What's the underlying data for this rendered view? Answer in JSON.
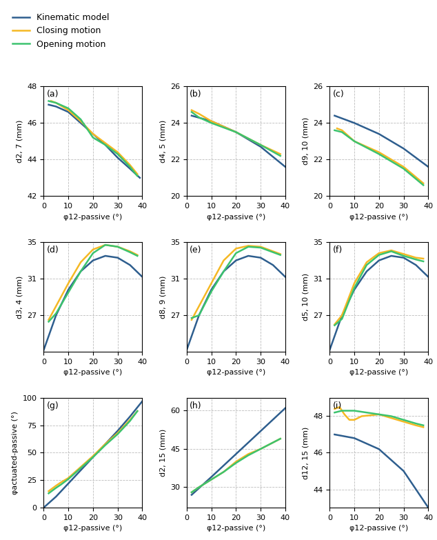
{
  "chart_data": [
    {
      "type": "line",
      "title": "(a)",
      "x_label": "φ12-passive (°)",
      "y_label": "d2, 7 (mm)",
      "xlim": [
        0,
        40
      ],
      "xticks": [
        0,
        10,
        20,
        30,
        40
      ],
      "ylim": [
        42,
        48
      ],
      "yticks": [
        42,
        44,
        46,
        48
      ],
      "grid": true,
      "legend": "upper left",
      "series": [
        {
          "name": "Kinematic model",
          "color": "#2e5e8e",
          "x": [
            2,
            5,
            10,
            15,
            20,
            25,
            30,
            35,
            39
          ],
          "values": [
            47.0,
            46.9,
            46.6,
            46.0,
            45.4,
            44.8,
            44.1,
            43.5,
            43.0
          ]
        },
        {
          "name": "Closing motion",
          "color": "#f5b823",
          "x": [
            3,
            5,
            10,
            15,
            20,
            25,
            30,
            35,
            38
          ],
          "values": [
            47.2,
            47.1,
            46.7,
            46.1,
            45.4,
            44.9,
            44.4,
            43.7,
            43.2
          ]
        },
        {
          "name": "Opening motion",
          "color": "#3cc36e",
          "x": [
            2,
            5,
            10,
            15,
            20,
            25,
            30,
            35,
            38
          ],
          "values": [
            47.2,
            47.1,
            46.8,
            46.2,
            45.2,
            44.8,
            44.3,
            43.6,
            43.1
          ]
        }
      ]
    },
    {
      "type": "line",
      "title": "(b)",
      "x_label": "φ12-passive (°)",
      "y_label": "d4, 5 (mm)",
      "xlim": [
        0,
        40
      ],
      "xticks": [
        0,
        10,
        20,
        30,
        40
      ],
      "ylim": [
        20,
        26
      ],
      "yticks": [
        20,
        22,
        24,
        26
      ],
      "grid": true,
      "series": [
        {
          "name": "Kinematic model",
          "color": "#2e5e8e",
          "x": [
            2,
            10,
            20,
            30,
            40
          ],
          "values": [
            24.4,
            24.1,
            23.5,
            22.7,
            21.6
          ]
        },
        {
          "name": "Closing motion",
          "color": "#f5b823",
          "x": [
            2,
            5,
            10,
            20,
            30,
            38
          ],
          "values": [
            24.7,
            24.5,
            24.1,
            23.5,
            22.8,
            22.3
          ]
        },
        {
          "name": "Opening motion",
          "color": "#3cc36e",
          "x": [
            2,
            5,
            10,
            20,
            30,
            38
          ],
          "values": [
            24.6,
            24.3,
            24.0,
            23.5,
            22.8,
            22.2
          ]
        }
      ]
    },
    {
      "type": "line",
      "title": "(c)",
      "x_label": "φ12-passive (°)",
      "y_label": "d9, 10 (mm)",
      "xlim": [
        0,
        40
      ],
      "xticks": [
        0,
        10,
        20,
        30,
        40
      ],
      "ylim": [
        20,
        26
      ],
      "yticks": [
        20,
        22,
        24,
        26
      ],
      "grid": true,
      "series": [
        {
          "name": "Kinematic model",
          "color": "#2e5e8e",
          "x": [
            2,
            10,
            20,
            30,
            40
          ],
          "values": [
            24.4,
            24.0,
            23.4,
            22.6,
            21.6
          ]
        },
        {
          "name": "Closing motion",
          "color": "#f5b823",
          "x": [
            3,
            5,
            10,
            20,
            30,
            38
          ],
          "values": [
            23.7,
            23.6,
            23.0,
            22.4,
            21.6,
            20.7
          ]
        },
        {
          "name": "Opening motion",
          "color": "#3cc36e",
          "x": [
            2,
            5,
            10,
            20,
            30,
            38
          ],
          "values": [
            23.6,
            23.5,
            23.0,
            22.3,
            21.5,
            20.6
          ]
        }
      ]
    },
    {
      "type": "line",
      "title": "(d)",
      "x_label": "φ12-passive (°)",
      "y_label": "d3, 4 (mm)",
      "xlim": [
        0,
        40
      ],
      "xticks": [
        0,
        10,
        20,
        30,
        40
      ],
      "ylim": [
        23,
        35
      ],
      "yticks": [
        27,
        31,
        35
      ],
      "grid": true,
      "series": [
        {
          "name": "Kinematic model",
          "color": "#2e5e8e",
          "x": [
            0,
            5,
            10,
            15,
            20,
            25,
            30,
            35,
            40
          ],
          "values": [
            23.2,
            27.0,
            29.8,
            31.8,
            33.0,
            33.5,
            33.3,
            32.5,
            31.2
          ]
        },
        {
          "name": "Closing motion",
          "color": "#f5b823",
          "x": [
            2,
            5,
            10,
            15,
            20,
            25,
            30,
            35,
            38
          ],
          "values": [
            26.5,
            28.0,
            30.5,
            32.8,
            34.2,
            34.7,
            34.5,
            34.0,
            33.6
          ]
        },
        {
          "name": "Opening motion",
          "color": "#3cc36e",
          "x": [
            2,
            5,
            10,
            15,
            20,
            25,
            30,
            35,
            38
          ],
          "values": [
            26.3,
            27.2,
            29.5,
            31.8,
            33.8,
            34.7,
            34.5,
            33.9,
            33.5
          ]
        }
      ]
    },
    {
      "type": "line",
      "title": "(e)",
      "x_label": "φ12-passive (°)",
      "y_label": "d8, 9 (mm)",
      "xlim": [
        0,
        40
      ],
      "xticks": [
        0,
        10,
        20,
        30,
        40
      ],
      "ylim": [
        23,
        35
      ],
      "yticks": [
        27,
        31,
        35
      ],
      "grid": true,
      "series": [
        {
          "name": "Kinematic model",
          "color": "#2e5e8e",
          "x": [
            0,
            5,
            10,
            15,
            20,
            25,
            30,
            35,
            40
          ],
          "values": [
            23.2,
            27.0,
            29.8,
            31.8,
            33.0,
            33.5,
            33.3,
            32.5,
            31.2
          ]
        },
        {
          "name": "Closing motion",
          "color": "#f5b823",
          "x": [
            2,
            5,
            10,
            15,
            20,
            25,
            30,
            35,
            38
          ],
          "values": [
            26.5,
            28.0,
            30.5,
            33.0,
            34.3,
            34.6,
            34.5,
            34.0,
            33.7
          ]
        },
        {
          "name": "Opening motion",
          "color": "#3cc36e",
          "x": [
            2,
            5,
            10,
            15,
            20,
            25,
            30,
            35,
            38
          ],
          "values": [
            26.7,
            27.0,
            29.6,
            31.8,
            33.8,
            34.5,
            34.4,
            33.9,
            33.6
          ]
        }
      ]
    },
    {
      "type": "line",
      "title": "(f)",
      "x_label": "φ12-passive (°)",
      "y_label": "d5, 10 (mm)",
      "xlim": [
        0,
        40
      ],
      "xticks": [
        0,
        10,
        20,
        30,
        40
      ],
      "ylim": [
        23,
        35
      ],
      "yticks": [
        27,
        31,
        35
      ],
      "grid": true,
      "series": [
        {
          "name": "Kinematic model",
          "color": "#2e5e8e",
          "x": [
            0,
            5,
            10,
            15,
            20,
            25,
            30,
            35,
            40
          ],
          "values": [
            23.2,
            27.0,
            29.8,
            31.8,
            33.0,
            33.5,
            33.3,
            32.5,
            31.2
          ]
        },
        {
          "name": "Closing motion",
          "color": "#f5b823",
          "x": [
            2,
            5,
            10,
            15,
            20,
            25,
            30,
            35,
            38
          ],
          "values": [
            26.0,
            27.0,
            30.5,
            32.8,
            33.8,
            34.1,
            33.7,
            33.3,
            33.2
          ]
        },
        {
          "name": "Opening motion",
          "color": "#3cc36e",
          "x": [
            2,
            5,
            10,
            15,
            20,
            25,
            30,
            35,
            38
          ],
          "values": [
            25.9,
            26.6,
            30.0,
            32.5,
            33.6,
            34.0,
            33.5,
            33.1,
            32.9
          ]
        }
      ]
    },
    {
      "type": "line",
      "title": "(g)",
      "x_label": "φ12-passive (°)",
      "y_label": "φactuated-passive (°)",
      "xlim": [
        0,
        40
      ],
      "xticks": [
        0,
        10,
        20,
        30,
        40
      ],
      "ylim": [
        0,
        100
      ],
      "yticks": [
        0,
        25,
        50,
        75,
        100
      ],
      "grid": true,
      "series": [
        {
          "name": "Kinematic model",
          "color": "#2e5e8e",
          "x": [
            0,
            5,
            10,
            15,
            20,
            25,
            30,
            35,
            40
          ],
          "values": [
            0,
            10,
            22,
            34,
            46,
            58,
            70,
            83,
            97
          ]
        },
        {
          "name": "Closing motion",
          "color": "#f5b823",
          "x": [
            2,
            5,
            7,
            10,
            15,
            20,
            25,
            30,
            35,
            38
          ],
          "values": [
            15,
            20,
            23,
            27,
            37,
            47,
            58,
            68,
            80,
            88
          ]
        },
        {
          "name": "Opening motion",
          "color": "#3cc36e",
          "x": [
            2,
            5,
            7,
            10,
            15,
            20,
            25,
            30,
            35,
            38
          ],
          "values": [
            13,
            18,
            21,
            26,
            36,
            46,
            57,
            67,
            79,
            88
          ]
        }
      ]
    },
    {
      "type": "line",
      "title": "(h)",
      "x_label": "φ12-passive (°)",
      "y_label": "d2, 15 (mm)",
      "xlim": [
        0,
        40
      ],
      "xticks": [
        0,
        10,
        20,
        30,
        40
      ],
      "ylim": [
        22,
        65
      ],
      "yticks": [
        30,
        45,
        60
      ],
      "grid": true,
      "series": [
        {
          "name": "Kinematic model",
          "color": "#2e5e8e",
          "x": [
            2,
            10,
            20,
            30,
            40
          ],
          "values": [
            27,
            34,
            43,
            52,
            61
          ]
        },
        {
          "name": "Closing motion",
          "color": "#f5b823",
          "x": [
            2,
            5,
            10,
            15,
            20,
            25,
            30,
            35,
            38
          ],
          "values": [
            28,
            30,
            33,
            36,
            40,
            43,
            45,
            47.5,
            49
          ]
        },
        {
          "name": "Opening motion",
          "color": "#3cc36e",
          "x": [
            2,
            5,
            10,
            15,
            20,
            25,
            30,
            35,
            38
          ],
          "values": [
            28,
            30,
            33,
            36,
            39.5,
            42.5,
            45,
            47.5,
            49
          ]
        }
      ]
    },
    {
      "type": "line",
      "title": "(i)",
      "x_label": "φ12-passive (°)",
      "y_label": "d12, 15 (mm)",
      "xlim": [
        0,
        40
      ],
      "xticks": [
        0,
        10,
        20,
        30,
        40
      ],
      "ylim": [
        43,
        49
      ],
      "yticks": [
        44,
        46,
        48
      ],
      "grid": true,
      "series": [
        {
          "name": "Kinematic model",
          "color": "#2e5e8e",
          "x": [
            2,
            10,
            20,
            30,
            40
          ],
          "values": [
            47.0,
            46.8,
            46.2,
            45.0,
            43.0
          ]
        },
        {
          "name": "Closing motion",
          "color": "#f5b823",
          "x": [
            2,
            4,
            6,
            8,
            10,
            13,
            20,
            25,
            30,
            35,
            38
          ],
          "values": [
            48.4,
            48.5,
            48.1,
            47.8,
            47.8,
            48.0,
            48.1,
            47.9,
            47.7,
            47.5,
            47.4
          ]
        },
        {
          "name": "Opening motion",
          "color": "#3cc36e",
          "x": [
            2,
            5,
            10,
            15,
            20,
            25,
            30,
            35,
            38
          ],
          "values": [
            48.2,
            48.3,
            48.3,
            48.2,
            48.1,
            48.0,
            47.8,
            47.6,
            47.5
          ]
        }
      ]
    }
  ]
}
